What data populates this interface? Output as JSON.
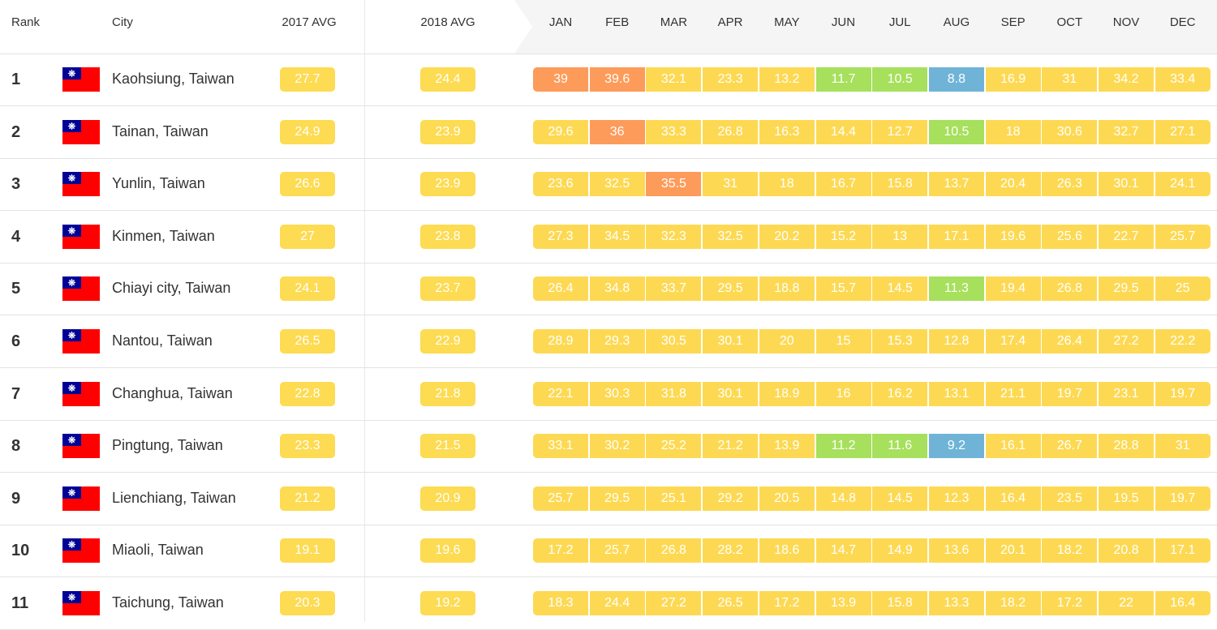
{
  "headers": {
    "rank": "Rank",
    "city": "City",
    "avg2017": "2017 AVG",
    "avg2018": "2018 AVG",
    "months": [
      "JAN",
      "FEB",
      "MAR",
      "APR",
      "MAY",
      "JUN",
      "JUL",
      "AUG",
      "SEP",
      "OCT",
      "NOV",
      "DEC"
    ]
  },
  "colors": {
    "moderate": "#fdd953",
    "unhealthy_sensitive": "#fd9b5a",
    "good": "#a6e05c",
    "excellent": "#6fb4d7",
    "avg_bg": "#fddb52"
  },
  "flag_icon": "taiwan-flag-icon",
  "rows": [
    {
      "rank": "1",
      "city": "Kaohsiung, Taiwan",
      "avg2017": "27.7",
      "avg2018": "24.4",
      "months": [
        "39",
        "39.6",
        "32.1",
        "23.3",
        "13.2",
        "11.7",
        "10.5",
        "8.8",
        "16.9",
        "31",
        "34.2",
        "33.4"
      ]
    },
    {
      "rank": "2",
      "city": "Tainan, Taiwan",
      "avg2017": "24.9",
      "avg2018": "23.9",
      "months": [
        "29.6",
        "36",
        "33.3",
        "26.8",
        "16.3",
        "14.4",
        "12.7",
        "10.5",
        "18",
        "30.6",
        "32.7",
        "27.1"
      ]
    },
    {
      "rank": "3",
      "city": "Yunlin, Taiwan",
      "avg2017": "26.6",
      "avg2018": "23.9",
      "months": [
        "23.6",
        "32.5",
        "35.5",
        "31",
        "18",
        "16.7",
        "15.8",
        "13.7",
        "20.4",
        "26.3",
        "30.1",
        "24.1"
      ]
    },
    {
      "rank": "4",
      "city": "Kinmen, Taiwan",
      "avg2017": "27",
      "avg2018": "23.8",
      "months": [
        "27.3",
        "34.5",
        "32.3",
        "32.5",
        "20.2",
        "15.2",
        "13",
        "17.1",
        "19.6",
        "25.6",
        "22.7",
        "25.7"
      ]
    },
    {
      "rank": "5",
      "city": "Chiayi city, Taiwan",
      "avg2017": "24.1",
      "avg2018": "23.7",
      "months": [
        "26.4",
        "34.8",
        "33.7",
        "29.5",
        "18.8",
        "15.7",
        "14.5",
        "11.3",
        "19.4",
        "26.8",
        "29.5",
        "25"
      ]
    },
    {
      "rank": "6",
      "city": "Nantou, Taiwan",
      "avg2017": "26.5",
      "avg2018": "22.9",
      "months": [
        "28.9",
        "29.3",
        "30.5",
        "30.1",
        "20",
        "15",
        "15.3",
        "12.8",
        "17.4",
        "26.4",
        "27.2",
        "22.2"
      ]
    },
    {
      "rank": "7",
      "city": "Changhua, Taiwan",
      "avg2017": "22.8",
      "avg2018": "21.8",
      "months": [
        "22.1",
        "30.3",
        "31.8",
        "30.1",
        "18.9",
        "16",
        "16.2",
        "13.1",
        "21.1",
        "19.7",
        "23.1",
        "19.7"
      ]
    },
    {
      "rank": "8",
      "city": "Pingtung, Taiwan",
      "avg2017": "23.3",
      "avg2018": "21.5",
      "months": [
        "33.1",
        "30.2",
        "25.2",
        "21.2",
        "13.9",
        "11.2",
        "11.6",
        "9.2",
        "16.1",
        "26.7",
        "28.8",
        "31"
      ]
    },
    {
      "rank": "9",
      "city": "Lienchiang, Taiwan",
      "avg2017": "21.2",
      "avg2018": "20.9",
      "months": [
        "25.7",
        "29.5",
        "25.1",
        "29.2",
        "20.5",
        "14.8",
        "14.5",
        "12.3",
        "16.4",
        "23.5",
        "19.5",
        "19.7"
      ]
    },
    {
      "rank": "10",
      "city": "Miaoli, Taiwan",
      "avg2017": "19.1",
      "avg2018": "19.6",
      "months": [
        "17.2",
        "25.7",
        "26.8",
        "28.2",
        "18.6",
        "14.7",
        "14.9",
        "13.6",
        "20.1",
        "18.2",
        "20.8",
        "17.1"
      ]
    },
    {
      "rank": "11",
      "city": "Taichung, Taiwan",
      "avg2017": "20.3",
      "avg2018": "19.2",
      "months": [
        "18.3",
        "24.4",
        "27.2",
        "26.5",
        "17.2",
        "13.9",
        "15.8",
        "13.3",
        "18.2",
        "17.2",
        "22",
        "16.4"
      ]
    }
  ]
}
